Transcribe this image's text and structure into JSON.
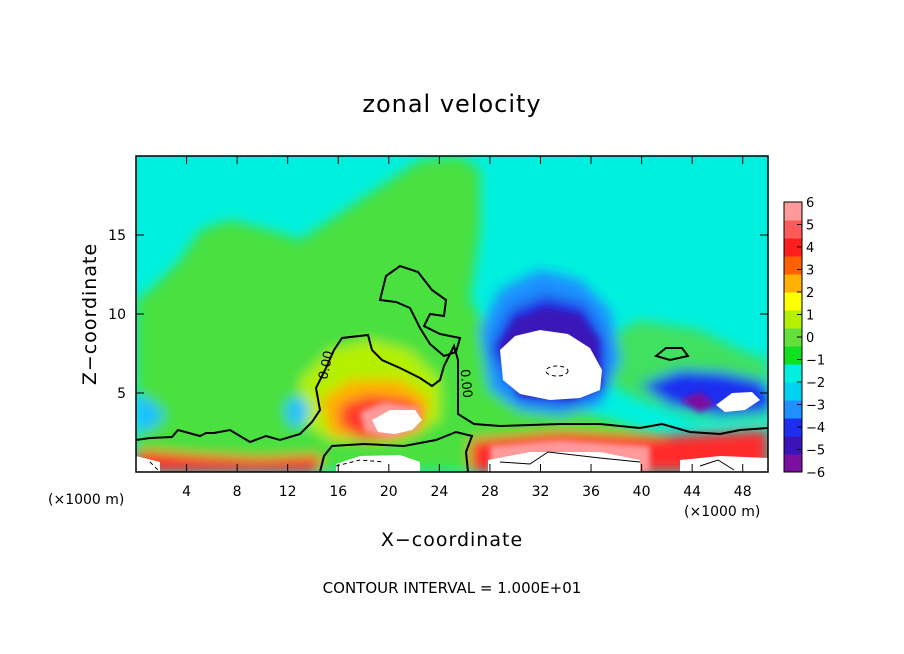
{
  "chart_data": {
    "type": "heatmap",
    "title": "zonal velocity",
    "xlabel": "X−coordinate",
    "ylabel": "Z−coordinate",
    "x_multiplier_left": "(×1000 m)",
    "x_multiplier_right": "(×1000 m)",
    "xlim": [
      0,
      50
    ],
    "ylim": [
      0,
      20
    ],
    "xticks": [
      4,
      8,
      12,
      16,
      20,
      24,
      28,
      32,
      36,
      40,
      44,
      48
    ],
    "yticks": [
      5,
      10,
      15
    ],
    "colorbar": {
      "ticks": [
        "6",
        "5",
        "4",
        "3",
        "2",
        "1",
        "0",
        "−1",
        "−2",
        "−3",
        "−4",
        "−5",
        "−6"
      ],
      "min": -6,
      "max": 6,
      "colors": [
        "#7a0fa0",
        "#3a14b8",
        "#1e2ef0",
        "#1e90ff",
        "#00d2f0",
        "#00f0e0",
        "#10e020",
        "#64e03c",
        "#b4f000",
        "#ffff00",
        "#ffb000",
        "#ff6000",
        "#ff1e1e",
        "#ff5a5a",
        "#ff9a9a"
      ],
      "over_color": "#ffffff"
    },
    "contour_labels": [
      "0.00",
      "0.00"
    ],
    "footer": "CONTOUR INTERVAL = 1.000E+01"
  }
}
